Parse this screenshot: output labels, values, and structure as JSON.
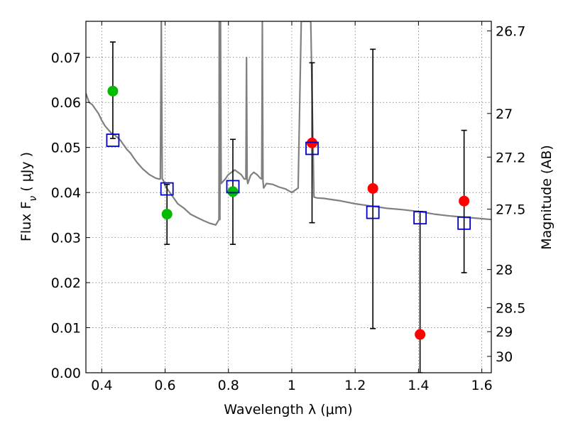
{
  "chart_data": {
    "type": "scatter",
    "title": "",
    "xlabel": "Wavelength  λ (μm)",
    "ylabel": "Flux  F",
    "ylabel_sub": "ν",
    "ylabel_unit": "  ( μJy )",
    "y2label": "Magnitude (AB)",
    "xlim": [
      0.35,
      1.63
    ],
    "ylim": [
      0.0,
      0.078
    ],
    "grid": true,
    "x_ticks": [
      0.4,
      0.6,
      0.8,
      1.0,
      1.2,
      1.4,
      1.6
    ],
    "x_tick_labels": [
      "0.4",
      "0.6",
      "0.8",
      "1",
      "1.2",
      "1.4",
      "1.6"
    ],
    "y_ticks": [
      0.0,
      0.01,
      0.02,
      0.03,
      0.04,
      0.05,
      0.06,
      0.07
    ],
    "y_tick_labels": [
      "0.00",
      "0.01",
      "0.02",
      "0.03",
      "0.04",
      "0.05",
      "0.06",
      "0.07"
    ],
    "mag_ticks": [
      26.7,
      27,
      27.2,
      27.5,
      28,
      28.5,
      29,
      30
    ],
    "mag_tick_labels": [
      "26.7",
      "27",
      "27.2",
      "27.5",
      "28",
      "28.5",
      "29",
      "30"
    ],
    "series": [
      {
        "name": "",
        "marker": "circle",
        "color": "#00bb00",
        "x": [
          0.435,
          0.606,
          0.814
        ],
        "y": [
          0.0625,
          0.0352,
          0.0402
        ]
      },
      {
        "name": "",
        "marker": "circle",
        "color": "#ff0000",
        "x": [
          1.064,
          1.256,
          1.405,
          1.544
        ],
        "y": [
          0.051,
          0.0409,
          0.0085,
          0.0381
        ]
      },
      {
        "name": "",
        "marker": "open-square",
        "color": "#0000cc",
        "x": [
          0.435,
          0.606,
          0.814,
          1.064,
          1.256,
          1.405,
          1.544
        ],
        "y": [
          0.0516,
          0.0408,
          0.0413,
          0.0498,
          0.0356,
          0.0344,
          0.0332
        ]
      }
    ],
    "error_bars": {
      "color": "#000000",
      "x": [
        0.435,
        0.606,
        0.814,
        1.064,
        1.256,
        1.405,
        1.544
      ],
      "low": [
        0.052,
        0.0285,
        0.0285,
        0.0333,
        0.0098,
        0.0,
        0.0222
      ],
      "high": [
        0.0734,
        0.0418,
        0.0518,
        0.0688,
        0.0718,
        0.0358,
        0.0538
      ]
    },
    "model_spectrum": {
      "color": "#808080",
      "x": [
        0.35,
        0.36,
        0.37,
        0.38,
        0.39,
        0.4,
        0.41,
        0.42,
        0.43,
        0.44,
        0.45,
        0.46,
        0.47,
        0.48,
        0.49,
        0.5,
        0.51,
        0.52,
        0.53,
        0.54,
        0.55,
        0.56,
        0.57,
        0.58,
        0.585,
        0.588,
        0.591,
        0.594,
        0.6,
        0.62,
        0.64,
        0.66,
        0.68,
        0.7,
        0.72,
        0.74,
        0.76,
        0.77,
        0.771,
        0.773,
        0.775,
        0.777,
        0.79,
        0.8,
        0.81,
        0.82,
        0.83,
        0.84,
        0.85,
        0.855,
        0.857,
        0.859,
        0.861,
        0.87,
        0.88,
        0.89,
        0.9,
        0.905,
        0.907,
        0.909,
        0.911,
        0.92,
        0.94,
        0.96,
        0.98,
        1.0,
        1.01,
        1.02,
        1.03,
        1.04,
        1.05,
        1.06,
        1.07,
        1.08,
        1.1,
        1.15,
        1.2,
        1.25,
        1.3,
        1.35,
        1.4,
        1.45,
        1.5,
        1.55,
        1.6,
        1.63
      ],
      "y": [
        0.062,
        0.06,
        0.0595,
        0.0585,
        0.0575,
        0.056,
        0.0548,
        0.054,
        0.0532,
        0.0528,
        0.0522,
        0.0515,
        0.0505,
        0.0495,
        0.0488,
        0.0478,
        0.0468,
        0.046,
        0.0452,
        0.0446,
        0.044,
        0.0436,
        0.0432,
        0.043,
        0.043,
        0.078,
        0.043,
        0.0428,
        0.0415,
        0.0395,
        0.0375,
        0.0365,
        0.0352,
        0.0345,
        0.0338,
        0.0332,
        0.0328,
        0.034,
        0.078,
        0.034,
        0.078,
        0.042,
        0.043,
        0.044,
        0.0445,
        0.045,
        0.0445,
        0.044,
        0.043,
        0.043,
        0.07,
        0.043,
        0.042,
        0.0438,
        0.0445,
        0.044,
        0.0432,
        0.043,
        0.078,
        0.0425,
        0.041,
        0.042,
        0.0418,
        0.0412,
        0.0408,
        0.04,
        0.0405,
        0.041,
        0.078,
        0.078,
        0.078,
        0.078,
        0.039,
        0.0388,
        0.0387,
        0.0382,
        0.0375,
        0.037,
        0.0365,
        0.0362,
        0.0358,
        0.0352,
        0.0348,
        0.0345,
        0.0342,
        0.034
      ]
    }
  }
}
